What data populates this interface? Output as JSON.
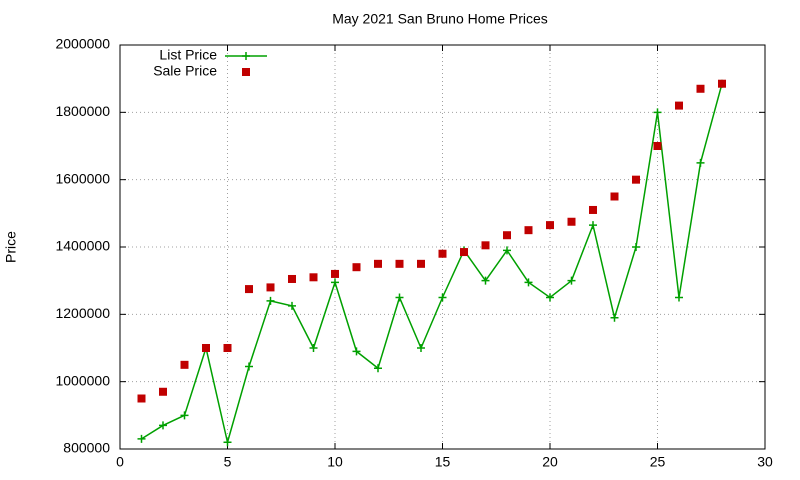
{
  "chart_data": {
    "type": "line",
    "title": "May 2021 San Bruno Home Prices",
    "y_label": "Price",
    "x": [
      1,
      2,
      3,
      4,
      5,
      6,
      7,
      8,
      9,
      10,
      11,
      12,
      13,
      14,
      15,
      16,
      17,
      18,
      19,
      20,
      21,
      22,
      23,
      24,
      25,
      26,
      27,
      28
    ],
    "series": [
      {
        "name": "List Price",
        "color": "#00a000",
        "mode": "lines+markers",
        "values": [
          830000,
          870000,
          900000,
          1100000,
          820000,
          1045000,
          1240000,
          1225000,
          1100000,
          1295000,
          1090000,
          1040000,
          1250000,
          1100000,
          1250000,
          1390000,
          1300000,
          1390000,
          1295000,
          1250000,
          1300000,
          1465000,
          1190000,
          1400000,
          1800000,
          1250000,
          1650000,
          1885000
        ]
      },
      {
        "name": "Sale Price",
        "color": "#c00000",
        "mode": "markers",
        "values": [
          950000,
          970000,
          1050000,
          1100000,
          1100000,
          1275000,
          1280000,
          1305000,
          1310000,
          1320000,
          1340000,
          1350000,
          1350000,
          1350000,
          1380000,
          1385000,
          1405000,
          1435000,
          1450000,
          1465000,
          1475000,
          1510000,
          1550000,
          1600000,
          1700000,
          1820000,
          1870000,
          1885000
        ]
      }
    ],
    "xlim": [
      0,
      30
    ],
    "xticks": [
      0,
      5,
      10,
      15,
      20,
      25,
      30
    ],
    "ylim": [
      800000,
      2000000
    ],
    "yticks": [
      800000,
      1000000,
      1200000,
      1400000,
      1600000,
      1800000,
      2000000
    ],
    "grid": true,
    "legend_position": "top-left"
  }
}
